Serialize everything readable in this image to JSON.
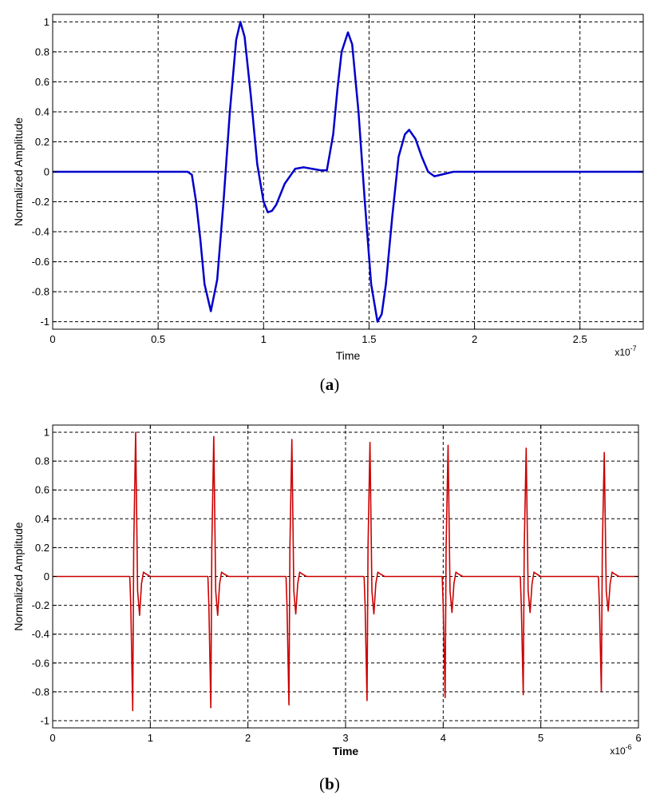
{
  "chart_data": [
    {
      "panel": "a",
      "caption_letter": "a",
      "type": "line",
      "title": "",
      "xlabel": "Time",
      "ylabel": "Normalized Amplitude",
      "x_exponent_label": "x10",
      "x_exponent": "-7",
      "xlim": [
        0,
        2.8
      ],
      "ylim": [
        -1.05,
        1.05
      ],
      "xticks": [
        0,
        0.5,
        1,
        1.5,
        2,
        2.5
      ],
      "xtick_labels": [
        "0",
        "0.5",
        "1",
        "1.5",
        "2",
        "2.5"
      ],
      "yticks": [
        -1,
        -0.8,
        -0.6,
        -0.4,
        -0.2,
        0,
        0.2,
        0.4,
        0.6,
        0.8,
        1
      ],
      "ytick_labels": [
        "-1",
        "-0.8",
        "-0.6",
        "-0.4",
        "-0.2",
        "0",
        "0.2",
        "0.4",
        "0.6",
        "0.8",
        "1"
      ],
      "grid": true,
      "color": "#0000cc",
      "series": [
        {
          "x": [
            0,
            0.64,
            0.66,
            0.68,
            0.7,
            0.72,
            0.75,
            0.78,
            0.81,
            0.84,
            0.87,
            0.89,
            0.91,
            0.94,
            0.97,
            1.0,
            1.02,
            1.04,
            1.06,
            1.1,
            1.15,
            1.19,
            1.23,
            1.27,
            1.3,
            1.33,
            1.35,
            1.37,
            1.4,
            1.42,
            1.45,
            1.48,
            1.51,
            1.54,
            1.56,
            1.58,
            1.61,
            1.64,
            1.67,
            1.69,
            1.72,
            1.75,
            1.78,
            1.81,
            1.84,
            1.87,
            1.9,
            1.93,
            2.0,
            2.8
          ],
          "y": [
            0,
            0,
            -0.02,
            -0.2,
            -0.45,
            -0.75,
            -0.93,
            -0.72,
            -0.2,
            0.4,
            0.88,
            1.0,
            0.9,
            0.5,
            0.05,
            -0.2,
            -0.27,
            -0.26,
            -0.22,
            -0.08,
            0.02,
            0.03,
            0.02,
            0.01,
            0.01,
            0.25,
            0.55,
            0.8,
            0.93,
            0.85,
            0.4,
            -0.2,
            -0.75,
            -1.0,
            -0.95,
            -0.75,
            -0.3,
            0.1,
            0.25,
            0.28,
            0.22,
            0.1,
            0.0,
            -0.03,
            -0.02,
            -0.01,
            0.0,
            0.0,
            0,
            0
          ]
        }
      ]
    },
    {
      "panel": "b",
      "caption_letter": "b",
      "type": "line",
      "title": "",
      "xlabel": "Time",
      "ylabel": "Normalized Amplitude",
      "x_exponent_label": "x10",
      "x_exponent": "-6",
      "xlim": [
        0,
        6
      ],
      "ylim": [
        -1.05,
        1.05
      ],
      "xticks": [
        0,
        1,
        2,
        3,
        4,
        5,
        6
      ],
      "xtick_labels": [
        "0",
        "1",
        "2",
        "3",
        "4",
        "5",
        "6"
      ],
      "yticks": [
        -1,
        -0.8,
        -0.6,
        -0.4,
        -0.2,
        0,
        0.2,
        0.4,
        0.6,
        0.8,
        1
      ],
      "ytick_labels": [
        "-1",
        "-0.8",
        "-0.6",
        "-0.4",
        "-0.2",
        "0",
        "0.2",
        "0.4",
        "0.6",
        "0.8",
        "1"
      ],
      "grid": true,
      "color": "#cc0000",
      "pulse_starts": [
        0.8,
        1.62,
        2.42,
        3.22,
        4.02,
        4.82,
        5.62
      ],
      "pulse_peaks_pos": [
        1.0,
        0.97,
        0.95,
        0.93,
        0.91,
        0.89,
        0.86
      ],
      "pulse_peaks_neg": [
        -0.93,
        -0.91,
        -0.89,
        -0.86,
        -0.84,
        -0.82,
        -0.8
      ],
      "pulse_aftershock": [
        -0.27,
        -0.27,
        -0.26,
        -0.26,
        -0.25,
        -0.25,
        -0.24
      ],
      "series": [
        {
          "x": [
            0,
            0.79,
            0.8,
            0.82,
            0.83,
            0.85,
            0.87,
            0.89,
            0.91,
            0.93,
            0.95,
            1.0,
            1.59,
            1.6,
            1.62,
            1.63,
            1.65,
            1.67,
            1.69,
            1.71,
            1.73,
            1.75,
            1.8,
            2.39,
            2.4,
            2.42,
            2.43,
            2.45,
            2.47,
            2.49,
            2.51,
            2.53,
            2.55,
            2.6,
            3.19,
            3.2,
            3.22,
            3.23,
            3.25,
            3.27,
            3.29,
            3.31,
            3.33,
            3.35,
            3.4,
            3.99,
            4.0,
            4.02,
            4.03,
            4.05,
            4.07,
            4.09,
            4.11,
            4.13,
            4.15,
            4.2,
            4.79,
            4.8,
            4.82,
            4.83,
            4.85,
            4.87,
            4.89,
            4.91,
            4.93,
            4.95,
            5.0,
            5.59,
            5.6,
            5.62,
            5.63,
            5.65,
            5.67,
            5.69,
            5.71,
            5.73,
            5.75,
            5.8,
            6.0
          ],
          "y": [
            0,
            0,
            -0.2,
            -0.93,
            0.2,
            1.0,
            -0.1,
            -0.27,
            -0.05,
            0.03,
            0.02,
            0,
            0,
            -0.2,
            -0.91,
            0.2,
            0.97,
            -0.1,
            -0.27,
            -0.05,
            0.03,
            0.02,
            0,
            0,
            -0.2,
            -0.89,
            0.2,
            0.95,
            -0.1,
            -0.26,
            -0.05,
            0.03,
            0.02,
            0,
            0,
            -0.2,
            -0.86,
            0.2,
            0.93,
            -0.1,
            -0.26,
            -0.05,
            0.03,
            0.02,
            0,
            0,
            -0.2,
            -0.84,
            0.2,
            0.91,
            -0.1,
            -0.25,
            -0.05,
            0.03,
            0.02,
            0,
            0,
            -0.2,
            -0.82,
            0.2,
            0.89,
            -0.1,
            -0.25,
            -0.05,
            0.03,
            0.02,
            0,
            0,
            -0.2,
            -0.8,
            0.2,
            0.86,
            -0.1,
            -0.24,
            -0.05,
            0.03,
            0.02,
            0,
            0
          ]
        }
      ]
    }
  ]
}
